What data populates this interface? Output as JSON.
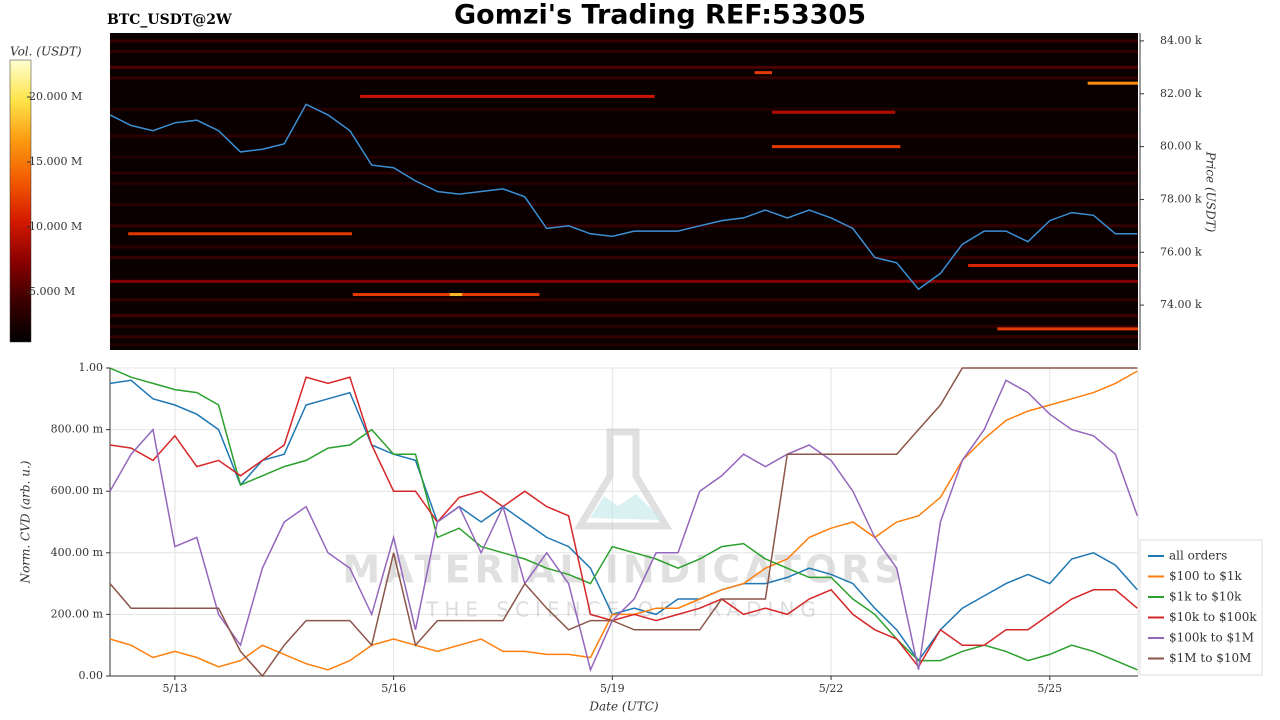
{
  "chart_data": [
    {
      "type": "heatmap",
      "title": "Gomzi's Trading REF:53305",
      "subtitle": "BTC_USDT@2W",
      "ylabel": "Price (USDT)",
      "colorbar_label": "Vol. (USDT)",
      "xlim": [
        12.11,
        26.21
      ],
      "ylim": [
        72300,
        84300
      ],
      "yticks": [
        {
          "value": 74000,
          "label": "74.00 k"
        },
        {
          "value": 76000,
          "label": "76.00 k"
        },
        {
          "value": 78000,
          "label": "78.00 k"
        },
        {
          "value": 80000,
          "label": "80.00 k"
        },
        {
          "value": 82000,
          "label": "82.00 k"
        },
        {
          "value": 84000,
          "label": "84.00 k"
        }
      ],
      "clim": [
        1150000,
        22850000
      ],
      "cticks": [
        {
          "value": 5000000,
          "label": "5.000 M"
        },
        {
          "value": 10000000,
          "label": "10.000 M"
        },
        {
          "value": 15000000,
          "label": "15.000 M"
        },
        {
          "value": 20000000,
          "label": "20.000 M"
        }
      ],
      "colorscale": [
        "#000000",
        "#3a0000",
        "#8a0000",
        "#d41a00",
        "#f25a00",
        "#fb9a10",
        "#fde34a",
        "#ffffd0"
      ],
      "background": "#0a0000",
      "line_color": "#3b8fd4",
      "x": [
        12.11,
        12.4,
        12.7,
        13.0,
        13.3,
        13.6,
        13.9,
        14.2,
        14.5,
        14.8,
        15.1,
        15.4,
        15.7,
        16.0,
        16.3,
        16.6,
        16.9,
        17.2,
        17.5,
        17.8,
        18.1,
        18.4,
        18.7,
        19.0,
        19.3,
        19.6,
        19.9,
        20.2,
        20.5,
        20.8,
        21.1,
        21.4,
        21.7,
        22.0,
        22.3,
        22.6,
        22.9,
        23.2,
        23.5,
        23.8,
        24.1,
        24.4,
        24.7,
        25.0,
        25.3,
        25.6,
        25.9,
        26.2
      ],
      "values": [
        81200,
        80800,
        80600,
        80900,
        81000,
        80600,
        79800,
        79900,
        80100,
        81600,
        81200,
        80600,
        79300,
        79200,
        78700,
        78300,
        78200,
        78300,
        78400,
        78100,
        76900,
        77000,
        76700,
        76600,
        76800,
        76800,
        76800,
        77000,
        77200,
        77300,
        77600,
        77300,
        77600,
        77300,
        76900,
        75800,
        75600,
        74600,
        75200,
        76300,
        76800,
        76800,
        76400,
        77200,
        77500,
        77400,
        76700,
        76700
      ],
      "levels": [
        {
          "price": 84000,
          "start": 12.11,
          "end": 26.21,
          "volume": 4000000
        },
        {
          "price": 83600,
          "start": 12.11,
          "end": 26.21,
          "volume": 3500000
        },
        {
          "price": 83000,
          "start": 12.11,
          "end": 26.21,
          "volume": 5000000
        },
        {
          "price": 82600,
          "start": 12.11,
          "end": 26.21,
          "volume": 4000000
        },
        {
          "price": 81400,
          "start": 12.11,
          "end": 26.21,
          "volume": 3000000
        },
        {
          "price": 80400,
          "start": 12.11,
          "end": 26.21,
          "volume": 3500000
        },
        {
          "price": 79600,
          "start": 12.11,
          "end": 26.21,
          "volume": 3000000
        },
        {
          "price": 79000,
          "start": 12.11,
          "end": 26.21,
          "volume": 3500000
        },
        {
          "price": 78600,
          "start": 12.11,
          "end": 26.21,
          "volume": 3000000
        },
        {
          "price": 77800,
          "start": 12.11,
          "end": 26.21,
          "volume": 3500000
        },
        {
          "price": 77000,
          "start": 12.11,
          "end": 26.21,
          "volume": 4000000
        },
        {
          "price": 76200,
          "start": 12.11,
          "end": 26.21,
          "volume": 3500000
        },
        {
          "price": 75800,
          "start": 12.11,
          "end": 26.21,
          "volume": 4000000
        },
        {
          "price": 74900,
          "start": 12.11,
          "end": 26.21,
          "volume": 7000000
        },
        {
          "price": 74200,
          "start": 12.11,
          "end": 26.21,
          "volume": 4000000
        },
        {
          "price": 73600,
          "start": 12.11,
          "end": 26.21,
          "volume": 4500000
        },
        {
          "price": 73200,
          "start": 12.11,
          "end": 26.21,
          "volume": 3500000
        },
        {
          "price": 72800,
          "start": 12.11,
          "end": 26.21,
          "volume": 4000000
        },
        {
          "price": 72500,
          "start": 12.11,
          "end": 26.21,
          "volume": 3000000
        },
        {
          "price": 76700,
          "start": 12.36,
          "end": 15.43,
          "volume": 12000000
        },
        {
          "price": 74400,
          "start": 15.44,
          "end": 18.0,
          "volume": 12000000
        },
        {
          "price": 74400,
          "start": 16.77,
          "end": 16.94,
          "volume": 18000000
        },
        {
          "price": 81900,
          "start": 15.54,
          "end": 19.58,
          "volume": 10000000
        },
        {
          "price": 81300,
          "start": 21.19,
          "end": 22.88,
          "volume": 9000000
        },
        {
          "price": 82800,
          "start": 20.95,
          "end": 21.19,
          "volume": 12000000
        },
        {
          "price": 80000,
          "start": 21.19,
          "end": 22.95,
          "volume": 12000000
        },
        {
          "price": 82400,
          "start": 25.52,
          "end": 26.21,
          "volume": 16000000
        },
        {
          "price": 75500,
          "start": 23.88,
          "end": 26.21,
          "volume": 11000000
        },
        {
          "price": 73100,
          "start": 24.28,
          "end": 26.21,
          "volume": 12000000
        }
      ]
    },
    {
      "type": "line",
      "xlabel": "Date (UTC)",
      "ylabel": "Norm. CVD (arb. u.)",
      "watermark": [
        "MATERIAL INDICATORS",
        "THE SCIENCE OF TRADING"
      ],
      "grid": true,
      "legend": "lower right",
      "xlim": [
        12.11,
        26.21
      ],
      "ylim": [
        0,
        1
      ],
      "xticks": [
        {
          "value": 13,
          "label": "5/13"
        },
        {
          "value": 16,
          "label": "5/16"
        },
        {
          "value": 19,
          "label": "5/19"
        },
        {
          "value": 22,
          "label": "5/22"
        },
        {
          "value": 25,
          "label": "5/25"
        }
      ],
      "yticks": [
        {
          "value": 0,
          "label": "0.00"
        },
        {
          "value": 0.2,
          "label": "200.00 m"
        },
        {
          "value": 0.4,
          "label": "400.00 m"
        },
        {
          "value": 0.6,
          "label": "600.00 m"
        },
        {
          "value": 0.8,
          "label": "800.00 m"
        },
        {
          "value": 1,
          "label": "1.00"
        }
      ],
      "x": [
        12.11,
        12.4,
        12.7,
        13.0,
        13.3,
        13.6,
        13.9,
        14.2,
        14.5,
        14.8,
        15.1,
        15.4,
        15.7,
        16.0,
        16.3,
        16.6,
        16.9,
        17.2,
        17.5,
        17.8,
        18.1,
        18.4,
        18.7,
        19.0,
        19.3,
        19.6,
        19.9,
        20.2,
        20.5,
        20.8,
        21.1,
        21.4,
        21.7,
        22.0,
        22.3,
        22.6,
        22.9,
        23.2,
        23.5,
        23.8,
        24.1,
        24.4,
        24.7,
        25.0,
        25.3,
        25.6,
        25.9,
        26.2
      ],
      "series": [
        {
          "name": "all orders",
          "color": "#1f77b4",
          "values": [
            0.95,
            0.96,
            0.9,
            0.88,
            0.85,
            0.8,
            0.62,
            0.7,
            0.72,
            0.88,
            0.9,
            0.92,
            0.75,
            0.72,
            0.7,
            0.5,
            0.55,
            0.5,
            0.55,
            0.5,
            0.45,
            0.42,
            0.35,
            0.2,
            0.22,
            0.2,
            0.25,
            0.25,
            0.28,
            0.3,
            0.3,
            0.32,
            0.35,
            0.33,
            0.3,
            0.22,
            0.15,
            0.05,
            0.15,
            0.22,
            0.26,
            0.3,
            0.33,
            0.3,
            0.38,
            0.4,
            0.36,
            0.28
          ]
        },
        {
          "name": "$100 to $1k",
          "color": "#ff7f0e",
          "values": [
            0.12,
            0.1,
            0.06,
            0.08,
            0.06,
            0.03,
            0.05,
            0.1,
            0.07,
            0.04,
            0.02,
            0.05,
            0.1,
            0.12,
            0.1,
            0.08,
            0.1,
            0.12,
            0.08,
            0.08,
            0.07,
            0.07,
            0.06,
            0.2,
            0.2,
            0.22,
            0.22,
            0.25,
            0.28,
            0.3,
            0.35,
            0.38,
            0.45,
            0.48,
            0.5,
            0.45,
            0.5,
            0.52,
            0.58,
            0.7,
            0.77,
            0.83,
            0.86,
            0.88,
            0.9,
            0.92,
            0.95,
            0.99
          ]
        },
        {
          "name": "$1k to $10k",
          "color": "#2ca02c",
          "values": [
            1.0,
            0.97,
            0.95,
            0.93,
            0.92,
            0.88,
            0.62,
            0.65,
            0.68,
            0.7,
            0.74,
            0.75,
            0.8,
            0.72,
            0.72,
            0.45,
            0.48,
            0.42,
            0.4,
            0.38,
            0.35,
            0.33,
            0.3,
            0.42,
            0.4,
            0.38,
            0.35,
            0.38,
            0.42,
            0.43,
            0.38,
            0.35,
            0.32,
            0.32,
            0.25,
            0.2,
            0.12,
            0.05,
            0.05,
            0.08,
            0.1,
            0.08,
            0.05,
            0.07,
            0.1,
            0.08,
            0.05,
            0.02
          ]
        },
        {
          "name": "$10k to $100k",
          "color": "#d62728",
          "values": [
            0.75,
            0.74,
            0.7,
            0.78,
            0.68,
            0.7,
            0.65,
            0.7,
            0.75,
            0.97,
            0.95,
            0.97,
            0.75,
            0.6,
            0.6,
            0.5,
            0.58,
            0.6,
            0.55,
            0.6,
            0.55,
            0.52,
            0.2,
            0.18,
            0.2,
            0.18,
            0.2,
            0.22,
            0.25,
            0.2,
            0.22,
            0.2,
            0.25,
            0.28,
            0.2,
            0.15,
            0.12,
            0.03,
            0.15,
            0.1,
            0.1,
            0.15,
            0.15,
            0.2,
            0.25,
            0.28,
            0.28,
            0.22
          ]
        },
        {
          "name": "$100k to $1M",
          "color": "#9467bd",
          "values": [
            0.6,
            0.72,
            0.8,
            0.42,
            0.45,
            0.2,
            0.1,
            0.35,
            0.5,
            0.55,
            0.4,
            0.35,
            0.2,
            0.45,
            0.15,
            0.5,
            0.55,
            0.4,
            0.55,
            0.3,
            0.4,
            0.3,
            0.02,
            0.18,
            0.25,
            0.4,
            0.4,
            0.6,
            0.65,
            0.72,
            0.68,
            0.72,
            0.75,
            0.7,
            0.6,
            0.45,
            0.35,
            0.02,
            0.5,
            0.7,
            0.8,
            0.96,
            0.92,
            0.85,
            0.8,
            0.78,
            0.72,
            0.52
          ]
        },
        {
          "name": "$1M to $10M",
          "color": "#8c564b",
          "values": [
            0.3,
            0.22,
            0.22,
            0.22,
            0.22,
            0.22,
            0.08,
            0.0,
            0.1,
            0.18,
            0.18,
            0.18,
            0.1,
            0.4,
            0.1,
            0.18,
            0.18,
            0.18,
            0.18,
            0.3,
            0.22,
            0.15,
            0.18,
            0.18,
            0.15,
            0.15,
            0.15,
            0.15,
            0.25,
            0.25,
            0.25,
            0.72,
            0.72,
            0.72,
            0.72,
            0.72,
            0.72,
            0.8,
            0.88,
            1.0,
            1.0,
            1.0,
            1.0,
            1.0,
            1.0,
            1.0,
            1.0,
            1.0
          ]
        }
      ]
    }
  ]
}
